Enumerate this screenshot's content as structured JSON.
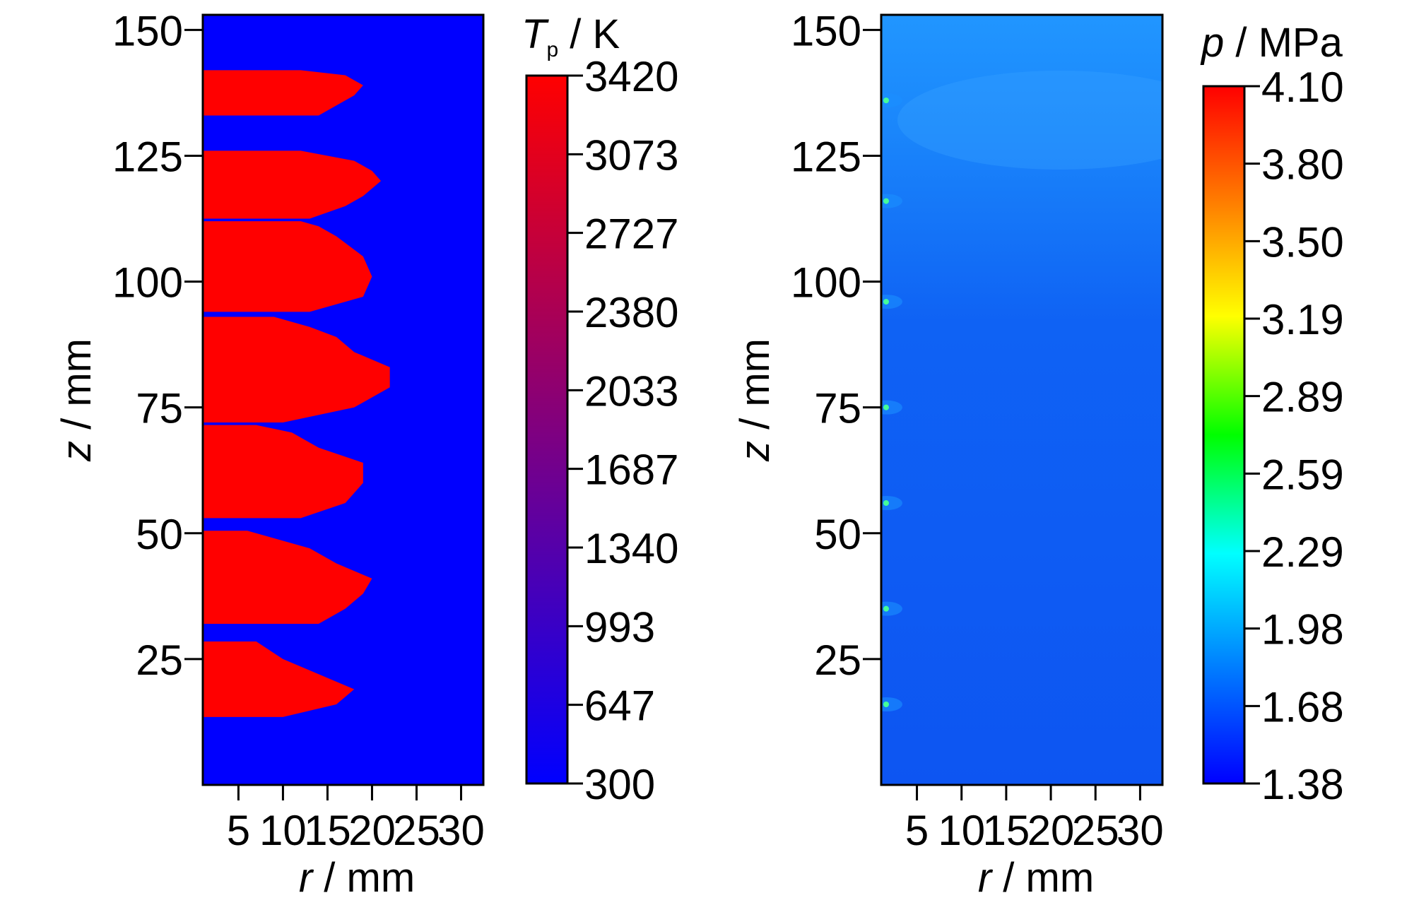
{
  "chart_data": [
    {
      "type": "heatmap",
      "xlabel": "r / mm",
      "ylabel": "z / mm",
      "xlim": [
        1,
        32.5
      ],
      "ylim": [
        0,
        153
      ],
      "x_ticks": [
        5,
        10,
        15,
        20,
        25,
        30
      ],
      "y_ticks": [
        25,
        50,
        75,
        100,
        125,
        150
      ],
      "colorbar": {
        "title_symbol": "T",
        "title_subscript": "p",
        "title_unit": " / K",
        "min": 300,
        "max": 3420,
        "ticks": [
          "3420",
          "3073",
          "2727",
          "2380",
          "2033",
          "1687",
          "1340",
          "993",
          "647",
          "300"
        ],
        "colors": [
          "#0000ff",
          "#ff0000"
        ]
      },
      "background_value": 300,
      "hot_value": 3420,
      "hot_regions": [
        {
          "z_bottom": 133,
          "z_top": 142,
          "r_edge": [
            [
              133,
              14
            ],
            [
              135,
              16
            ],
            [
              137,
              18
            ],
            [
              139,
              19
            ],
            [
              141,
              17
            ],
            [
              142,
              12
            ]
          ]
        },
        {
          "z_bottom": 112.5,
          "z_top": 126,
          "r_edge": [
            [
              112.5,
              13
            ],
            [
              115,
              17
            ],
            [
              117,
              19
            ],
            [
              120,
              21
            ],
            [
              122,
              20
            ],
            [
              124,
              18
            ],
            [
              126,
              12
            ]
          ]
        },
        {
          "z_bottom": 94,
          "z_top": 112,
          "r_edge": [
            [
              94,
              13
            ],
            [
              97,
              19
            ],
            [
              101,
              20
            ],
            [
              105,
              19
            ],
            [
              109,
              16
            ],
            [
              111,
              14
            ],
            [
              112,
              12
            ]
          ]
        },
        {
          "z_bottom": 72,
          "z_top": 93,
          "r_edge": [
            [
              72,
              10
            ],
            [
              75,
              18
            ],
            [
              79,
              22
            ],
            [
              83,
              22
            ],
            [
              86,
              18
            ],
            [
              89,
              16
            ],
            [
              91,
              13
            ],
            [
              93,
              9
            ]
          ]
        },
        {
          "z_bottom": 53,
          "z_top": 71.5,
          "r_edge": [
            [
              53,
              12
            ],
            [
              56,
              17
            ],
            [
              60,
              19
            ],
            [
              64,
              19
            ],
            [
              67,
              14
            ],
            [
              70,
              11
            ],
            [
              71.5,
              7
            ]
          ]
        },
        {
          "z_bottom": 32,
          "z_top": 50.5,
          "r_edge": [
            [
              32,
              14
            ],
            [
              35,
              17
            ],
            [
              38,
              19
            ],
            [
              41,
              20
            ],
            [
              44,
              16
            ],
            [
              47,
              13
            ],
            [
              50.5,
              6
            ]
          ]
        },
        {
          "z_bottom": 13.5,
          "z_top": 28.5,
          "r_edge": [
            [
              13.5,
              10
            ],
            [
              16,
              16
            ],
            [
              19,
              18
            ],
            [
              22,
              14
            ],
            [
              25,
              10
            ],
            [
              28.5,
              7
            ]
          ]
        }
      ]
    },
    {
      "type": "heatmap",
      "xlabel": "r / mm",
      "ylabel": "z / mm",
      "xlim": [
        1,
        32.5
      ],
      "ylim": [
        0,
        153
      ],
      "x_ticks": [
        5,
        10,
        15,
        20,
        25,
        30
      ],
      "y_ticks": [
        25,
        50,
        75,
        100,
        125,
        150
      ],
      "colorbar": {
        "title_symbol": "p",
        "title_unit": " / MPa",
        "min": 1.38,
        "max": 4.1,
        "ticks": [
          "4.10",
          "3.80",
          "3.50",
          "3.19",
          "2.89",
          "2.59",
          "2.29",
          "1.98",
          "1.68",
          "1.38"
        ],
        "colors": [
          "#0000ff",
          "#0080ff",
          "#00ffff",
          "#00ff00",
          "#ffff00",
          "#ff8000",
          "#ff0000"
        ]
      },
      "field": {
        "background_value": 1.5,
        "upper_region_value": 1.66
      },
      "inlet_hotspots_z": [
        16,
        35,
        56,
        75,
        96,
        116,
        136
      ]
    }
  ]
}
